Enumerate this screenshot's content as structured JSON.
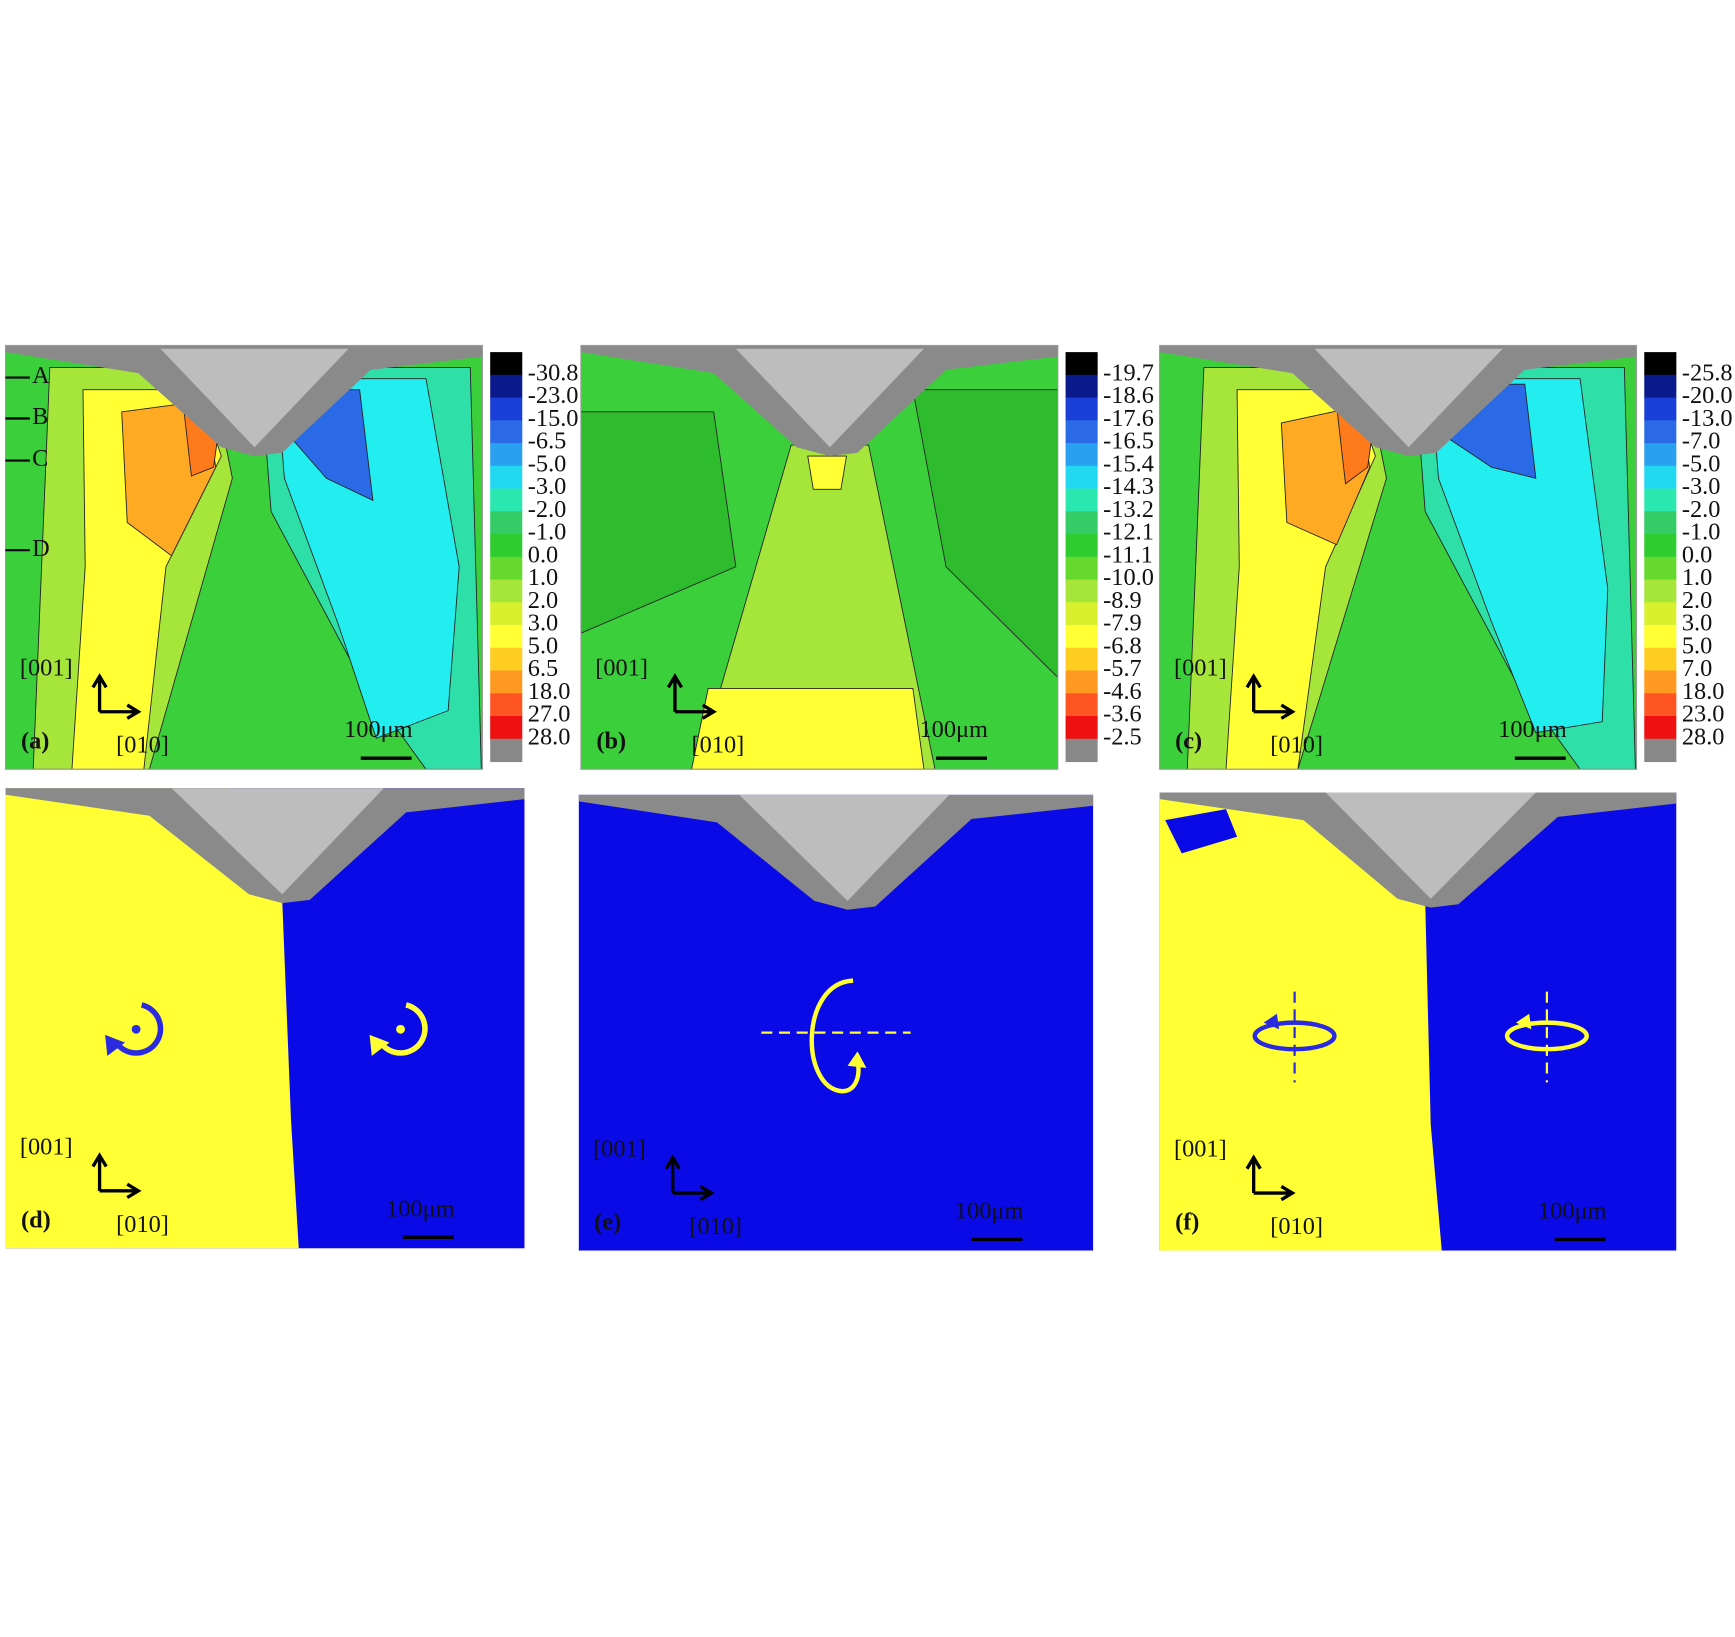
{
  "panels": [
    {
      "label": "(a)",
      "axis_up": "[001]",
      "axis_right": "[010]",
      "scale": "100μm",
      "markers": [
        "A",
        "B",
        "C",
        "D"
      ],
      "colorbar": [
        "-30.8",
        "-23.0",
        "-15.0",
        "-6.5",
        "-5.0",
        "-3.0",
        "-2.0",
        "-1.0",
        "0.0",
        "1.0",
        "2.0",
        "3.0",
        "5.0",
        "6.5",
        "18.0",
        "27.0",
        "28.0"
      ]
    },
    {
      "label": "(b)",
      "axis_up": "[001]",
      "axis_right": "[010]",
      "scale": "100μm",
      "colorbar": [
        "-19.7",
        "-18.6",
        "-17.6",
        "-16.5",
        "-15.4",
        "-14.3",
        "-13.2",
        "-12.1",
        "-11.1",
        "-10.0",
        "-8.9",
        "-7.9",
        "-6.8",
        "-5.7",
        "-4.6",
        "-3.6",
        "-2.5"
      ]
    },
    {
      "label": "(c)",
      "axis_up": "[001]",
      "axis_right": "[010]",
      "scale": "100μm",
      "colorbar": [
        "-25.8",
        "-20.0",
        "-13.0",
        "-7.0",
        "-5.0",
        "-3.0",
        "-2.0",
        "-1.0",
        "0.0",
        "1.0",
        "2.0",
        "3.0",
        "5.0",
        "7.0",
        "18.0",
        "23.0",
        "28.0"
      ]
    },
    {
      "label": "(d)",
      "axis_up": "[001]",
      "axis_right": "[010]",
      "scale": "100μm"
    },
    {
      "label": "(e)",
      "axis_up": "[001]",
      "axis_right": "[010]",
      "scale": "100μm"
    },
    {
      "label": "(f)",
      "axis_up": "[001]",
      "axis_right": "[010]",
      "scale": "100μm"
    }
  ]
}
